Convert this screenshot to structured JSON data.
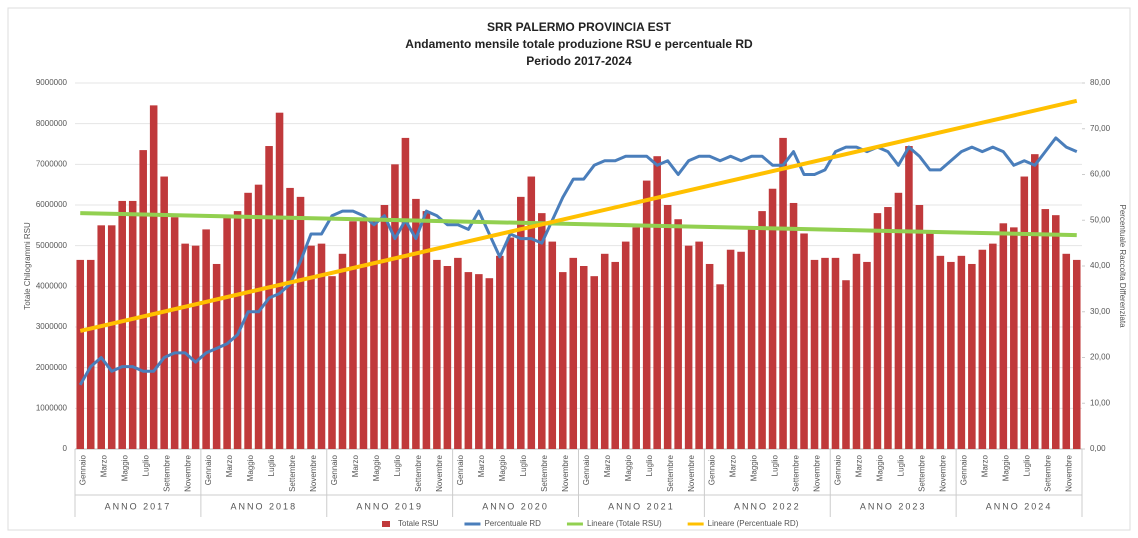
{
  "chart_data": {
    "type": "bar-line",
    "title": [
      "SRR PALERMO PROVINCIA EST",
      "Andamento mensile totale produzione RSU e percentuale RD",
      "Periodo 2017-2024"
    ],
    "y_label": "Totale Chilogrammi RSU",
    "y2_label": "Percentuale Raccolta Differenziata",
    "categories": [
      "Gennaio",
      null,
      "Marzo",
      null,
      "Maggio",
      null,
      "Luglio",
      null,
      "Settembre",
      null,
      "Novembre",
      null,
      "Gennaio",
      null,
      "Marzo",
      null,
      "Maggio",
      null,
      "Luglio",
      null,
      "Settembre",
      null,
      "Novembre",
      null,
      "Gennaio",
      null,
      "Marzo",
      null,
      "Maggio",
      null,
      "Luglio",
      null,
      "Settembre",
      null,
      "Novembre",
      null,
      "Gennaio",
      null,
      "Marzo",
      null,
      "Maggio",
      null,
      "Luglio",
      null,
      "Settembre",
      null,
      "Novembre",
      null,
      "Gennaio",
      null,
      "Marzo",
      null,
      "Maggio",
      null,
      "Luglio",
      null,
      "Settembre",
      null,
      "Novembre",
      null,
      "Gennaio",
      null,
      "Marzo",
      null,
      "Maggio",
      null,
      "Luglio",
      null,
      "Settembre",
      null,
      "Novembre",
      null,
      "Gennaio",
      null,
      "Marzo",
      null,
      "Maggio",
      null,
      "Luglio",
      null,
      "Settembre",
      null,
      "Novembre",
      null,
      "Gennaio",
      null,
      "Marzo",
      null,
      "Maggio",
      null,
      "Luglio",
      null,
      "Settembre",
      null,
      "Novembre",
      null
    ],
    "groups": [
      "ANNO 2017",
      "ANNO 2018",
      "ANNO 2019",
      "ANNO 2020",
      "ANNO 2021",
      "ANNO 2022",
      "ANNO 2023",
      "ANNO 2024"
    ],
    "series": [
      {
        "name": "Totale RSU",
        "color": "#c0393b",
        "type": "bar",
        "values": [
          4650000,
          4650000,
          5500000,
          5500000,
          6100000,
          6100000,
          7350000,
          8450000,
          6700000,
          5700000,
          5050000,
          5000000,
          5400000,
          4550000,
          5700000,
          5850000,
          6300000,
          6500000,
          7450000,
          8270000,
          6420000,
          6200000,
          5000000,
          5050000,
          4250000,
          4800000,
          5600000,
          5650000,
          5600000,
          6000000,
          7000000,
          7650000,
          6150000,
          5850000,
          4650000,
          4500000,
          4700000,
          4350000,
          4300000,
          4200000,
          4750000,
          5200000,
          6200000,
          6700000,
          5800000,
          5100000,
          4350000,
          4700000,
          4500000,
          4250000,
          4800000,
          4600000,
          5100000,
          5450000,
          6600000,
          7200000,
          6000000,
          5650000,
          5000000,
          5100000,
          4550000,
          4050000,
          4900000,
          4850000,
          5450000,
          5850000,
          6400000,
          7650000,
          6050000,
          5300000,
          4650000,
          4700000,
          4700000,
          4150000,
          4800000,
          4600000,
          5800000,
          5950000,
          6300000,
          7450000,
          6000000,
          5300000,
          4750000,
          4600000,
          4750000,
          4550000,
          4900000,
          5050000,
          5550000,
          5450000,
          6700000,
          7250000,
          5900000,
          5750000,
          4800000,
          4650000
        ]
      },
      {
        "name": "Percentuale RD",
        "color": "#4a7ebb",
        "type": "line",
        "axis": "y2",
        "values": [
          14,
          18,
          20,
          17,
          18,
          18,
          17,
          17,
          20,
          21,
          21,
          19,
          21,
          22,
          23,
          25,
          30,
          30,
          33,
          34,
          36,
          41,
          47,
          47,
          51,
          52,
          52,
          51,
          49,
          51,
          46,
          50,
          46,
          52,
          51,
          49,
          49,
          48,
          52,
          47,
          42,
          47,
          46,
          46,
          45,
          50,
          55,
          59,
          59,
          62,
          63,
          63,
          64,
          64,
          64,
          62,
          63,
          60,
          63,
          64,
          64,
          63,
          64,
          63,
          64,
          64,
          62,
          62,
          65,
          60,
          60,
          61,
          65,
          66,
          66,
          65,
          66,
          65,
          62,
          66,
          64,
          61,
          61,
          63,
          65,
          66,
          65,
          66,
          65,
          62,
          63,
          62,
          65,
          68,
          66,
          65
        ]
      }
    ],
    "trendlines": [
      {
        "name": "Lineare (Totale RSU)",
        "color": "#92d050",
        "values": [
          5800000,
          5260000
        ]
      },
      {
        "name": "Lineare (Percentuale RD)",
        "color": "#ffc000",
        "axis": "y2",
        "values": [
          25.8,
          76.1
        ]
      }
    ],
    "ylim": [
      0,
      9000000
    ],
    "yticks": [
      0,
      1000000,
      2000000,
      3000000,
      4000000,
      5000000,
      6000000,
      7000000,
      8000000,
      9000000
    ],
    "y2lim": [
      0,
      80
    ],
    "y2ticks": [
      {
        "value": 0,
        "label": "0,00"
      },
      {
        "value": 10,
        "label": "10,00"
      },
      {
        "value": 20,
        "label": "20,00"
      },
      {
        "value": 30,
        "label": "30,00"
      },
      {
        "value": 40,
        "label": "40,00"
      },
      {
        "value": 50,
        "label": "50,00"
      },
      {
        "value": 60,
        "label": "60,00"
      },
      {
        "value": 70,
        "label": "70,00"
      },
      {
        "value": 80,
        "label": "80,00"
      }
    ],
    "grid": true
  }
}
